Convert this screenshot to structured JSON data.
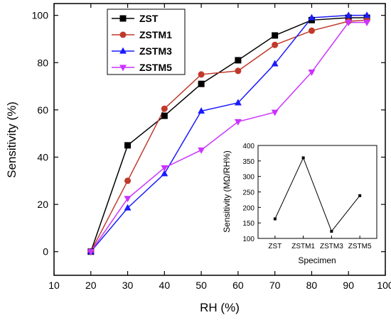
{
  "chart_data": [
    {
      "type": "line",
      "xlabel": "RH (%)",
      "ylabel": "Sensitivity (%)",
      "xlim": [
        10,
        100
      ],
      "ylim": [
        -10,
        105
      ],
      "xticks": [
        10,
        20,
        30,
        40,
        50,
        60,
        70,
        80,
        90,
        100
      ],
      "yticks": [
        0,
        20,
        40,
        60,
        80,
        100
      ],
      "x": [
        20,
        30,
        40,
        50,
        60,
        70,
        80,
        90,
        95
      ],
      "legend_position": "top-left",
      "series": [
        {
          "name": "ZST",
          "color": "#000000",
          "marker": "square",
          "values": [
            0,
            45,
            57.5,
            71,
            81,
            91.5,
            98,
            99,
            99
          ]
        },
        {
          "name": "ZSTM1",
          "color": "#c0392b",
          "marker": "circle",
          "values": [
            0,
            30,
            60.5,
            75,
            76.5,
            87.5,
            93.5,
            97.5,
            98
          ]
        },
        {
          "name": "ZSTM3",
          "color": "#1a1aff",
          "marker": "triangle-up",
          "values": [
            0,
            18.5,
            33,
            59.5,
            63,
            79.5,
            99,
            100,
            100
          ]
        },
        {
          "name": "ZSTM5",
          "color": "#cc33ff",
          "marker": "triangle-down",
          "values": [
            0,
            22.5,
            35.5,
            43,
            55,
            59,
            76,
            97,
            97
          ]
        }
      ]
    },
    {
      "type": "line",
      "xlabel": "Specimen",
      "ylabel": "Sensitivity (MΩ/RH%)",
      "categories": [
        "ZST",
        "ZSTM1",
        "ZSTM3",
        "ZSTM5"
      ],
      "values": [
        163,
        360,
        123,
        238
      ],
      "ylim": [
        100,
        400
      ],
      "yticks": [
        100,
        150,
        200,
        250,
        300,
        350,
        400
      ],
      "color": "#000000",
      "marker": "square"
    }
  ]
}
